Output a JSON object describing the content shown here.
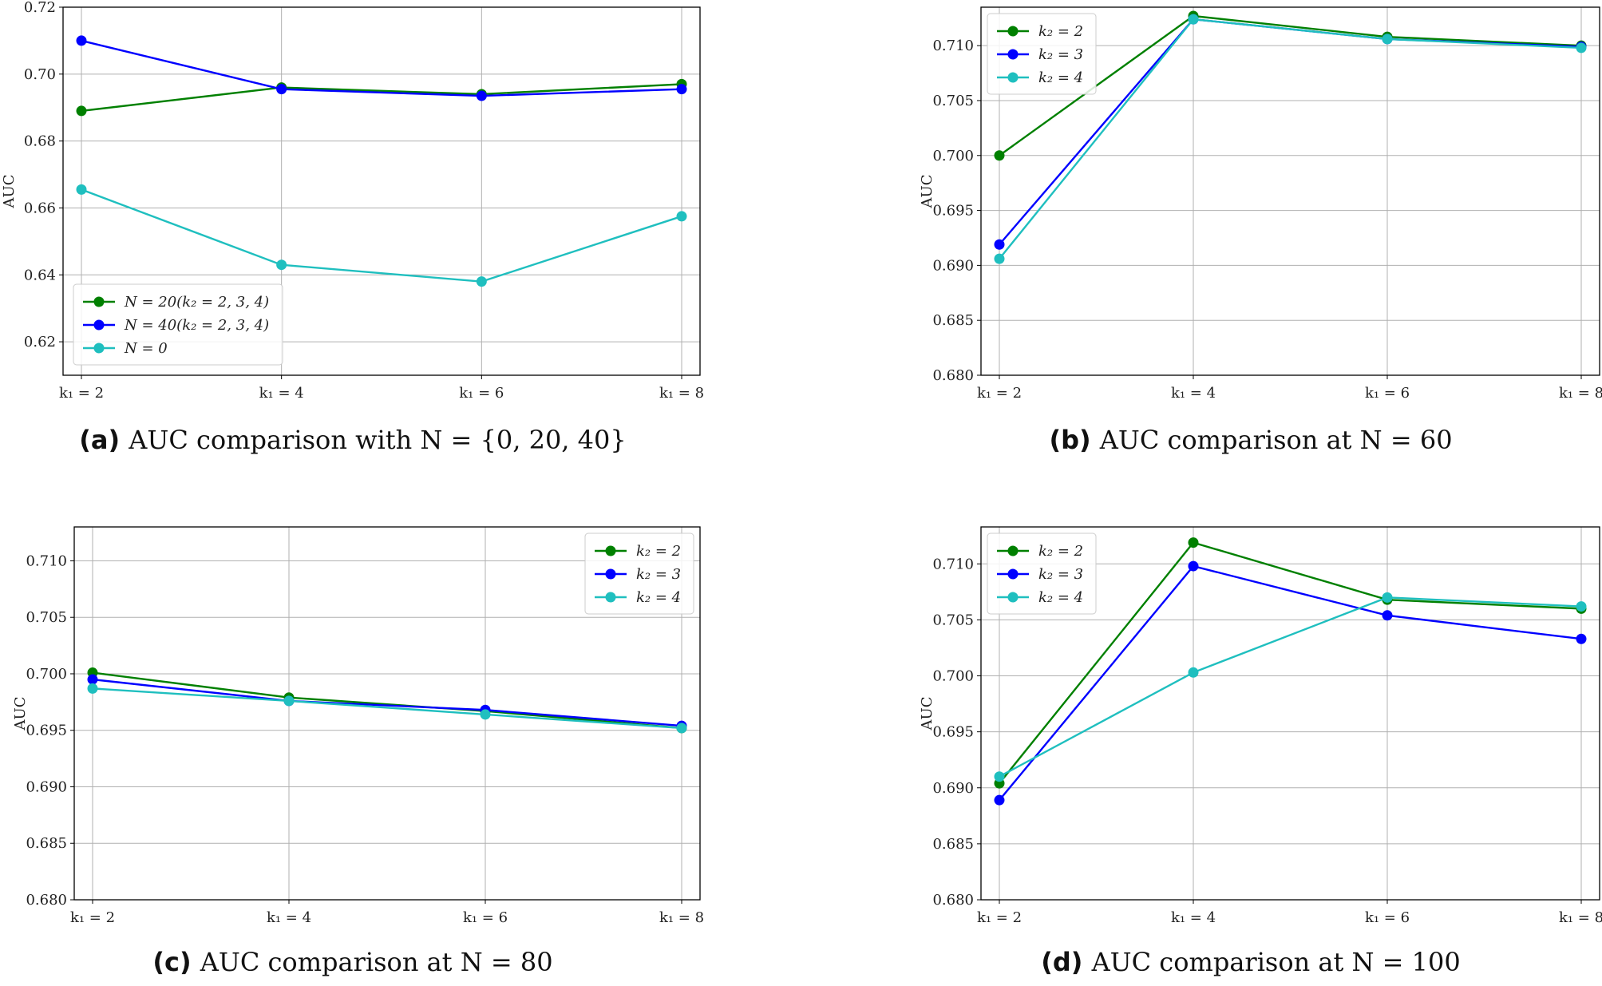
{
  "chart_data": [
    {
      "id": "a",
      "type": "line",
      "caption_letter": "(a)",
      "caption_text": "AUC comparison with N = {0, 20, 40}",
      "categories": [
        "k₁ = 2",
        "k₁ = 4",
        "k₁ = 6",
        "k₁ = 8"
      ],
      "ylabel": "AUC",
      "ylim": [
        0.61,
        0.72
      ],
      "yticks": [
        0.62,
        0.64,
        0.66,
        0.68,
        0.7,
        0.72
      ],
      "ytick_labels": [
        "0.62",
        "0.64",
        "0.66",
        "0.68",
        "0.70",
        "0.72"
      ],
      "grid": true,
      "legend_placement": "lower-left",
      "series": [
        {
          "name": "N = 20(k₂ = 2, 3, 4)",
          "color": "#008000",
          "values": [
            0.689,
            0.696,
            0.694,
            0.697
          ]
        },
        {
          "name": "N = 40(k₂ = 2, 3, 4)",
          "color": "#0000ff",
          "values": [
            0.71,
            0.6955,
            0.6935,
            0.6955
          ]
        },
        {
          "name": "N = 0",
          "color": "#1fbfbf",
          "values": [
            0.6655,
            0.643,
            0.638,
            0.6575
          ]
        }
      ]
    },
    {
      "id": "b",
      "type": "line",
      "caption_letter": "(b)",
      "caption_text": "AUC comparison at N = 60",
      "categories": [
        "k₁ = 2",
        "k₁ = 4",
        "k₁ = 6",
        "k₁ = 8"
      ],
      "ylabel": "AUC",
      "ylim": [
        0.68,
        0.7135
      ],
      "yticks": [
        0.68,
        0.685,
        0.69,
        0.695,
        0.7,
        0.705,
        0.71
      ],
      "ytick_labels": [
        "0.680",
        "0.685",
        "0.690",
        "0.695",
        "0.700",
        "0.705",
        "0.710"
      ],
      "grid": true,
      "legend_placement": "upper-left",
      "series": [
        {
          "name": "k₂ = 2",
          "color": "#008000",
          "values": [
            0.7,
            0.7127,
            0.7108,
            0.71
          ]
        },
        {
          "name": "k₂ = 3",
          "color": "#0000ff",
          "values": [
            0.6919,
            0.7124,
            0.7106,
            0.7099
          ]
        },
        {
          "name": "k₂ = 4",
          "color": "#1fbfbf",
          "values": [
            0.6906,
            0.7124,
            0.7106,
            0.7098
          ]
        }
      ]
    },
    {
      "id": "c",
      "type": "line",
      "caption_letter": "(c)",
      "caption_text": "AUC comparison at N = 80",
      "categories": [
        "k₁ = 2",
        "k₁ = 4",
        "k₁ = 6",
        "k₁ = 8"
      ],
      "ylabel": "AUC",
      "ylim": [
        0.68,
        0.713
      ],
      "yticks": [
        0.68,
        0.685,
        0.69,
        0.695,
        0.7,
        0.705,
        0.71
      ],
      "ytick_labels": [
        "0.680",
        "0.685",
        "0.690",
        "0.695",
        "0.700",
        "0.705",
        "0.710"
      ],
      "grid": true,
      "legend_placement": "upper-right",
      "series": [
        {
          "name": "k₂ = 2",
          "color": "#008000",
          "values": [
            0.7001,
            0.6979,
            0.6967,
            0.6952
          ]
        },
        {
          "name": "k₂ = 3",
          "color": "#0000ff",
          "values": [
            0.6995,
            0.6976,
            0.6968,
            0.6954
          ]
        },
        {
          "name": "k₂ = 4",
          "color": "#1fbfbf",
          "values": [
            0.6987,
            0.6976,
            0.6964,
            0.6952
          ]
        }
      ]
    },
    {
      "id": "d",
      "type": "line",
      "caption_letter": "(d)",
      "caption_text": "AUC comparison at N = 100",
      "categories": [
        "k₁ = 2",
        "k₁ = 4",
        "k₁ = 6",
        "k₁ = 8"
      ],
      "ylabel": "AUC",
      "ylim": [
        0.68,
        0.7133
      ],
      "yticks": [
        0.68,
        0.685,
        0.69,
        0.695,
        0.7,
        0.705,
        0.71
      ],
      "ytick_labels": [
        "0.680",
        "0.685",
        "0.690",
        "0.695",
        "0.700",
        "0.705",
        "0.710"
      ],
      "grid": true,
      "legend_placement": "upper-left",
      "series": [
        {
          "name": "k₂ = 2",
          "color": "#008000",
          "values": [
            0.6904,
            0.7119,
            0.7068,
            0.706
          ]
        },
        {
          "name": "k₂ = 3",
          "color": "#0000ff",
          "values": [
            0.6889,
            0.7098,
            0.7054,
            0.7033
          ]
        },
        {
          "name": "k₂ = 4",
          "color": "#1fbfbf",
          "values": [
            0.691,
            0.7003,
            0.707,
            0.7062
          ]
        }
      ]
    }
  ]
}
